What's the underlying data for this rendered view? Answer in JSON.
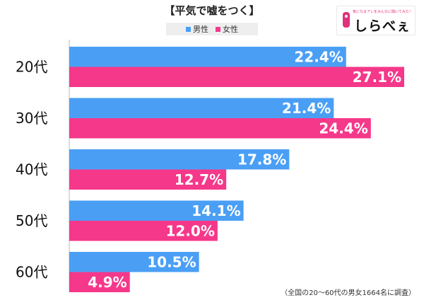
{
  "title": "【平気で嘘をつく】",
  "legend": [
    {
      "label": "男性",
      "color": "#4a9ff5"
    },
    {
      "label": "女性",
      "color": "#f5388a"
    }
  ],
  "logo": {
    "tagline": "気になるアレをみんなに聞いてみた！",
    "text": "しらべぇ"
  },
  "footer": "（全国の20～60代の男女1664名に調査）",
  "chart_data": {
    "type": "bar",
    "orientation": "horizontal",
    "categories": [
      "20代",
      "30代",
      "40代",
      "50代",
      "60代"
    ],
    "series": [
      {
        "name": "男性",
        "color": "#4a9ff5",
        "values": [
          22.4,
          21.4,
          17.8,
          14.1,
          10.5
        ],
        "labels": [
          "22.4%",
          "21.4%",
          "17.8%",
          "14.1%",
          "10.5%"
        ]
      },
      {
        "name": "女性",
        "color": "#f5388a",
        "values": [
          27.1,
          24.4,
          12.7,
          12.0,
          4.9
        ],
        "labels": [
          "27.1%",
          "24.4%",
          "12.7%",
          "12.0%",
          "4.9%"
        ]
      }
    ],
    "xlim": [
      0,
      27.1
    ],
    "grid": false
  }
}
